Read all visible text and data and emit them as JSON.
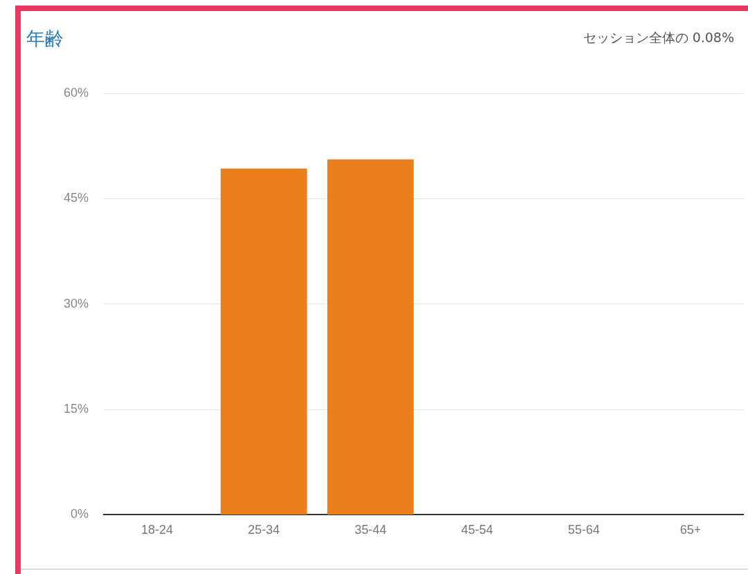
{
  "chart_data": {
    "type": "bar",
    "title": "年齢",
    "subtitle": "セッション全体の 0.08%",
    "categories": [
      "18-24",
      "25-34",
      "35-44",
      "45-54",
      "55-64",
      "65+"
    ],
    "values": [
      0,
      49.3,
      50.6,
      0,
      0,
      0
    ],
    "color": "#eb7f1b",
    "ylim": [
      0,
      60
    ],
    "yticks": [
      {
        "value": 0,
        "label": "0%"
      },
      {
        "value": 15,
        "label": "15%"
      },
      {
        "value": 30,
        "label": "30%"
      },
      {
        "value": 45,
        "label": "45%"
      },
      {
        "value": 60,
        "label": "60%"
      }
    ],
    "grid": "y",
    "legend": false
  }
}
